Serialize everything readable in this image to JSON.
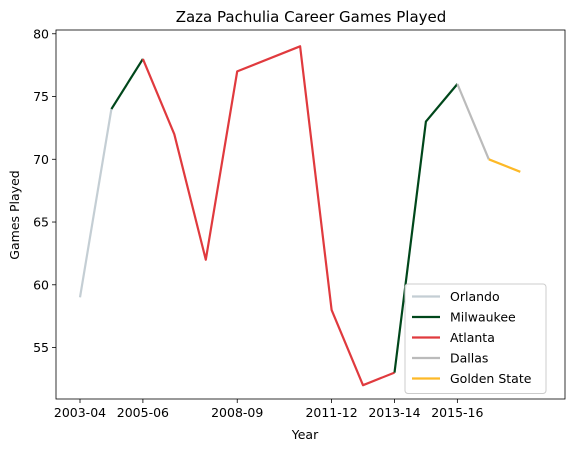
{
  "chart_data": {
    "type": "line",
    "title": "Zaza Pachulia Career Games Played",
    "xlabel": "Year",
    "ylabel": "Games Played",
    "x_categories": [
      "2003-04",
      "2004-05",
      "2005-06",
      "2006-07",
      "2007-08",
      "2008-09",
      "2009-10",
      "2010-11",
      "2011-12",
      "2012-13",
      "2013-14",
      "2014-15",
      "2015-16",
      "2016-17",
      "2017-18"
    ],
    "x_tick_labels": [
      "2003-04",
      "2005-06",
      "2008-09",
      "2011-12",
      "2013-14",
      "2015-16"
    ],
    "ylim": [
      50.9,
      80.3
    ],
    "y_ticks": [
      55,
      60,
      65,
      70,
      75,
      80
    ],
    "grid": false,
    "legend_position": "lower right",
    "series": [
      {
        "name": "Orlando",
        "color": "#c4ced4",
        "points": [
          [
            "2003-04",
            59
          ],
          [
            "2004-05",
            74
          ]
        ]
      },
      {
        "name": "Milwaukee",
        "color": "#00471b",
        "points": [
          [
            "2004-05",
            74
          ],
          [
            "2005-06",
            78
          ]
        ]
      },
      {
        "name": "Atlanta",
        "color": "#e03a3e",
        "points": [
          [
            "2005-06",
            78
          ],
          [
            "2006-07",
            72
          ],
          [
            "2007-08",
            62
          ],
          [
            "2008-09",
            77
          ],
          [
            "2010-11",
            79
          ],
          [
            "2011-12",
            58
          ],
          [
            "2012-13",
            52
          ],
          [
            "2013-14",
            53
          ]
        ]
      },
      {
        "name": "Milwaukee",
        "color": "#00471b",
        "points": [
          [
            "2013-14",
            53
          ],
          [
            "2014-15",
            73
          ],
          [
            "2015-16",
            76
          ]
        ]
      },
      {
        "name": "Dallas",
        "color": "#bbbbbb",
        "points": [
          [
            "2015-16",
            76
          ],
          [
            "2016-17",
            70
          ]
        ]
      },
      {
        "name": "Golden State",
        "color": "#fdb927",
        "points": [
          [
            "2016-17",
            70
          ],
          [
            "2017-18",
            69
          ]
        ]
      }
    ],
    "legend": [
      {
        "name": "Orlando",
        "color": "#c4ced4"
      },
      {
        "name": "Milwaukee",
        "color": "#00471b"
      },
      {
        "name": "Atlanta",
        "color": "#e03a3e"
      },
      {
        "name": "Dallas",
        "color": "#bbbbbb"
      },
      {
        "name": "Golden State",
        "color": "#fdb927"
      }
    ]
  }
}
